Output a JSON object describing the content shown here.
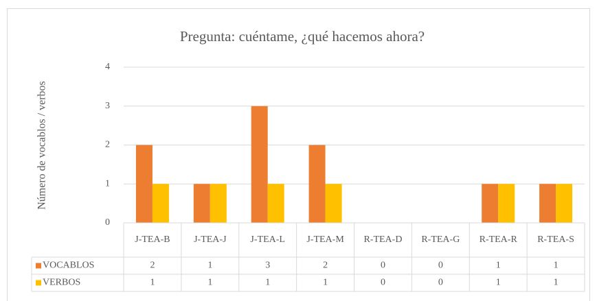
{
  "chart_data": {
    "type": "bar",
    "title": "Pregunta: cuéntame, ¿qué hacemos ahora?",
    "y_label": "Número de vocablos / verbos",
    "categories": [
      "J-TEA-B",
      "J-TEA-J",
      "J-TEA-L",
      "J-TEA-M",
      "R-TEA-D",
      "R-TEA-G",
      "R-TEA-R",
      "R-TEA-S"
    ],
    "series": [
      {
        "name": "VOCABLOS",
        "color": "#ed7d31",
        "values": [
          2,
          1,
          3,
          2,
          0,
          0,
          1,
          1
        ]
      },
      {
        "name": "VERBOS",
        "color": "#ffc000",
        "values": [
          1,
          1,
          1,
          1,
          0,
          0,
          1,
          1
        ]
      }
    ],
    "ylim": [
      0,
      4
    ],
    "yticks": [
      0,
      1,
      2,
      3,
      4
    ],
    "grid": true,
    "data_table": true
  }
}
